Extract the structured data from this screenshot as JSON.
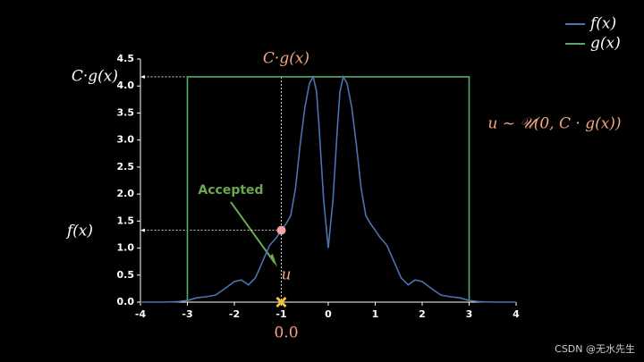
{
  "chart_data": {
    "type": "line",
    "series": [
      {
        "name": "f(x)",
        "color": "#4c72b0",
        "x": [
          -4,
          -3.5,
          -3.2,
          -3.0,
          -2.8,
          -2.6,
          -2.4,
          -2.2,
          -2.0,
          -1.85,
          -1.7,
          -1.55,
          -1.4,
          -1.25,
          -1.1,
          -1.0,
          -0.9,
          -0.8,
          -0.7,
          -0.6,
          -0.5,
          -0.4,
          -0.32,
          -0.25,
          -0.2,
          -0.1,
          0,
          0.1,
          0.2,
          0.25,
          0.32,
          0.4,
          0.5,
          0.6,
          0.7,
          0.8,
          0.9,
          1.0,
          1.1,
          1.25,
          1.4,
          1.55,
          1.7,
          1.85,
          2.0,
          2.2,
          2.4,
          2.6,
          2.8,
          3.0,
          3.2,
          3.5,
          4
        ],
        "values": [
          0,
          0,
          0.01,
          0.03,
          0.08,
          0.1,
          0.13,
          0.25,
          0.38,
          0.41,
          0.32,
          0.45,
          0.75,
          1.05,
          1.2,
          1.33,
          1.45,
          1.6,
          2.1,
          2.9,
          3.6,
          4.05,
          4.17,
          3.9,
          3.3,
          1.9,
          1.0,
          1.9,
          3.3,
          3.9,
          4.17,
          4.05,
          3.6,
          2.9,
          2.1,
          1.6,
          1.45,
          1.33,
          1.2,
          1.05,
          0.75,
          0.45,
          0.32,
          0.41,
          0.38,
          0.25,
          0.13,
          0.1,
          0.08,
          0.03,
          0.01,
          0,
          0
        ]
      },
      {
        "name": "g(x)",
        "color": "#55a868",
        "x": [
          -3,
          -3,
          3,
          3
        ],
        "values": [
          0,
          4.17,
          4.17,
          0
        ]
      }
    ],
    "xlim": [
      -4,
      4
    ],
    "xticks": [
      -4,
      -3,
      -2,
      -1,
      0,
      1,
      2,
      3,
      4
    ],
    "ylim": [
      0,
      4.5
    ],
    "yticks": [
      {
        "value": 0,
        "label": "0.0"
      },
      0.5,
      {
        "value": 1,
        "label": "1.0"
      },
      1.5,
      {
        "value": 2,
        "label": "2.0"
      },
      2.5,
      {
        "value": 3,
        "label": "3.0"
      },
      3.5,
      {
        "value": 4,
        "label": "4.0"
      },
      4.5
    ],
    "legend": "upper right",
    "sample": {
      "x": -1,
      "fx": 1.33,
      "cg": 4.17,
      "u": 0
    },
    "annotations": {
      "cg_left": "C·g(x)",
      "cg_top": "C·g(x)",
      "fx_left": "f(x)",
      "accepted": "Accepted",
      "u": "u",
      "sample_label": "0.0",
      "distribution": "u ~ 𝒰(0, C · g(x))"
    }
  },
  "watermark": "CSDN @无水先生"
}
